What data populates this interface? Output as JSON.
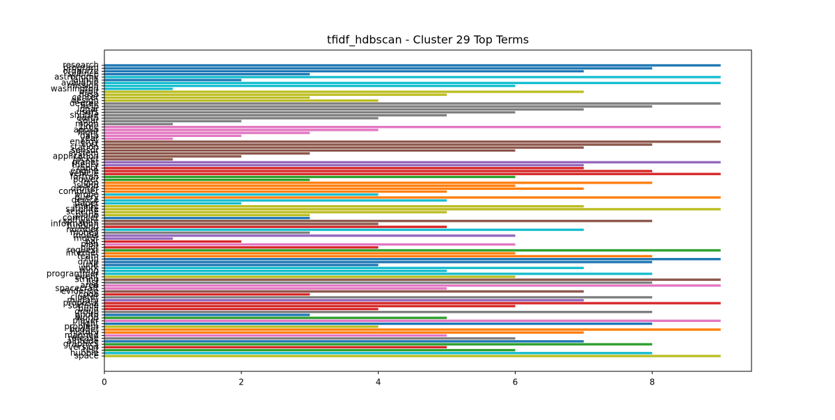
{
  "chart_data": {
    "type": "barh",
    "title": "tfidf_hdbscan - Cluster 29 Top Terms",
    "categories": [
      "research",
      "program",
      "organize",
      "science",
      "astronomy",
      "launch",
      "available",
      "mission",
      "washington",
      "orbit",
      "nasa",
      "center",
      "design",
      "degree",
      "help",
      "lunar",
      "users",
      "shuttle",
      "earth",
      "solar",
      "moon",
      "time",
      "apollo",
      "flight",
      "data",
      "year",
      "energy",
      "cost",
      "station",
      "sensor",
      "system",
      "application",
      "rocket",
      "planet",
      "theory",
      "robot",
      "engine",
      "vehicle",
      "fortran",
      "power",
      "loop",
      "island",
      "orbiter",
      "computer",
      "probe",
      "query",
      "device",
      "paper",
      "image",
      "satellite",
      "scheme",
      "plane",
      "compiler",
      "software",
      "information",
      "funding",
      "number",
      "money",
      "model",
      "motor",
      "bar",
      "plan",
      "pilot",
      "request",
      "internet",
      "team",
      "run",
      "drive",
      "unit",
      "work",
      "wing",
      "programmer",
      "event",
      "string",
      "list",
      "area",
      "spacecraft",
      "evidence",
      "code",
      "cluster",
      "military",
      "proposal",
      "surface",
      "build",
      "group",
      "photo",
      "world",
      "player",
      "light",
      "problem",
      "budget",
      "history",
      "manned",
      "release",
      "altitude",
      "graphics",
      "version",
      "test",
      "hubble",
      "space"
    ],
    "values": [
      9,
      8,
      7,
      3,
      9,
      2,
      9,
      6,
      1,
      7,
      5,
      3,
      4,
      9,
      8,
      7,
      6,
      5,
      4,
      2,
      1,
      9,
      4,
      3,
      2,
      1,
      9,
      8,
      7,
      6,
      3,
      2,
      1,
      9,
      7,
      7,
      8,
      9,
      6,
      3,
      8,
      6,
      7,
      5,
      4,
      9,
      5,
      2,
      7,
      9,
      5,
      3,
      3,
      8,
      4,
      5,
      7,
      3,
      6,
      1,
      2,
      6,
      4,
      9,
      6,
      8,
      9,
      8,
      4,
      7,
      5,
      8,
      6,
      9,
      8,
      9,
      5,
      7,
      3,
      8,
      7,
      9,
      6,
      4,
      8,
      3,
      5,
      9,
      8,
      4,
      9,
      7,
      5,
      6,
      7,
      8,
      5,
      6,
      8,
      9
    ],
    "colors": [
      "#1f77b4",
      "#1f77b4",
      "#1f77b4",
      "#1f77b4",
      "#17becf",
      "#1f77b4",
      "#17becf",
      "#17becf",
      "#17becf",
      "#bcbd22",
      "#bcbd22",
      "#bcbd22",
      "#bcbd22",
      "#7f7f7f",
      "#7f7f7f",
      "#7f7f7f",
      "#7f7f7f",
      "#7f7f7f",
      "#7f7f7f",
      "#7f7f7f",
      "#7f7f7f",
      "#e377c2",
      "#e377c2",
      "#e377c2",
      "#e377c2",
      "#e377c2",
      "#8c564b",
      "#8c564b",
      "#8c564b",
      "#8c564b",
      "#8c564b",
      "#8c564b",
      "#8c564b",
      "#9467bd",
      "#9467bd",
      "#d62728",
      "#d62728",
      "#d62728",
      "#2ca02c",
      "#2ca02c",
      "#ff7f0e",
      "#ff7f0e",
      "#ff7f0e",
      "#ff7f0e",
      "#17becf",
      "#ff7f0e",
      "#17becf",
      "#17becf",
      "#bcbd22",
      "#bcbd22",
      "#bcbd22",
      "#bcbd22",
      "#1f77b4",
      "#8c564b",
      "#8c564b",
      "#d62728",
      "#17becf",
      "#7f7f7f",
      "#9467bd",
      "#9467bd",
      "#d62728",
      "#e377c2",
      "#d62728",
      "#2ca02c",
      "#ff7f0e",
      "#ff7f0e",
      "#1f77b4",
      "#1f77b4",
      "#1f77b4",
      "#17becf",
      "#17becf",
      "#17becf",
      "#bcbd22",
      "#8c564b",
      "#7f7f7f",
      "#e377c2",
      "#e377c2",
      "#8c564b",
      "#d62728",
      "#7f7f7f",
      "#9467bd",
      "#d62728",
      "#d62728",
      "#d62728",
      "#7f7f7f",
      "#1f77b4",
      "#2ca02c",
      "#e377c2",
      "#1f77b4",
      "#bcbd22",
      "#ff7f0e",
      "#ff7f0e",
      "#e377c2",
      "#7f7f7f",
      "#1f77b4",
      "#2ca02c",
      "#d62728",
      "#2ca02c",
      "#17becf",
      "#bcbd22"
    ],
    "xlim": [
      0,
      9.45
    ],
    "xticks": [
      0,
      2,
      4,
      6,
      8
    ]
  }
}
